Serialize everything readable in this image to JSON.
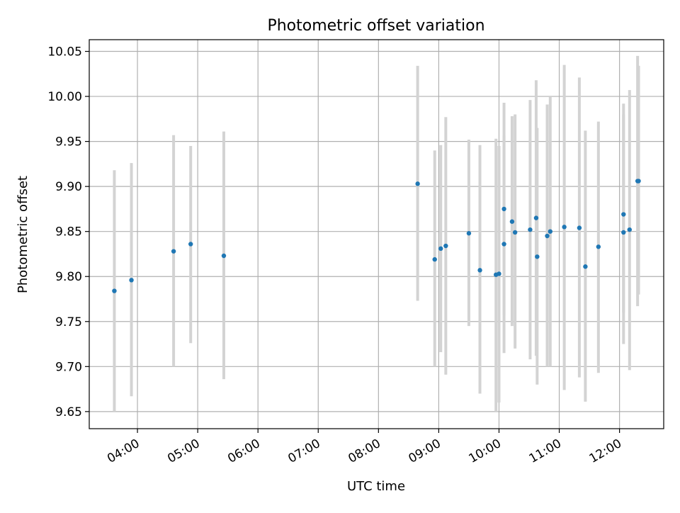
{
  "chart_data": {
    "type": "scatter",
    "title": "Photometric offset variation",
    "xlabel": "UTC time",
    "ylabel": "Photometric offset",
    "x_tick_labels": [
      "04:00",
      "05:00",
      "06:00",
      "07:00",
      "08:00",
      "09:00",
      "10:00",
      "11:00",
      "12:00"
    ],
    "y_tick_labels": [
      "9.65",
      "9.70",
      "9.75",
      "9.80",
      "9.85",
      "9.90",
      "9.95",
      "10.00",
      "10.05"
    ],
    "xlim": [
      "03:12",
      "12:44"
    ],
    "ylim": [
      9.631,
      10.063
    ],
    "grid": true,
    "legend": "none",
    "colors": {
      "marker": "#1f77b4",
      "errorbar": "#d3d3d3",
      "grid": "#b0b0b0"
    },
    "series": [
      {
        "points": [
          {
            "t": "03:37",
            "y": 9.784,
            "ylo": 9.65,
            "yhi": 9.918
          },
          {
            "t": "03:54",
            "y": 9.796,
            "ylo": 9.667,
            "yhi": 9.926
          },
          {
            "t": "04:36",
            "y": 9.828,
            "ylo": 9.7,
            "yhi": 9.957
          },
          {
            "t": "04:53",
            "y": 9.836,
            "ylo": 9.726,
            "yhi": 9.945
          },
          {
            "t": "05:26",
            "y": 9.823,
            "ylo": 9.686,
            "yhi": 9.961
          },
          {
            "t": "08:39",
            "y": 9.903,
            "ylo": 9.773,
            "yhi": 10.034
          },
          {
            "t": "08:56",
            "y": 9.819,
            "ylo": 9.7,
            "yhi": 9.94
          },
          {
            "t": "09:02",
            "y": 9.831,
            "ylo": 9.716,
            "yhi": 9.946
          },
          {
            "t": "09:07",
            "y": 9.834,
            "ylo": 9.691,
            "yhi": 9.977
          },
          {
            "t": "09:30",
            "y": 9.848,
            "ylo": 9.745,
            "yhi": 9.952
          },
          {
            "t": "09:41",
            "y": 9.807,
            "ylo": 9.67,
            "yhi": 9.946
          },
          {
            "t": "09:57",
            "y": 9.802,
            "ylo": 9.65,
            "yhi": 9.953
          },
          {
            "t": "10:00",
            "y": 9.803,
            "ylo": 9.66,
            "yhi": 9.945
          },
          {
            "t": "10:05",
            "y": 9.875,
            "ylo": 9.757,
            "yhi": 9.993
          },
          {
            "t": "10:05",
            "y": 9.836,
            "ylo": 9.715,
            "yhi": 9.957
          },
          {
            "t": "10:13",
            "y": 9.861,
            "ylo": 9.745,
            "yhi": 9.978
          },
          {
            "t": "10:16",
            "y": 9.849,
            "ylo": 9.72,
            "yhi": 9.98
          },
          {
            "t": "10:31",
            "y": 9.852,
            "ylo": 9.708,
            "yhi": 9.996
          },
          {
            "t": "10:37",
            "y": 9.865,
            "ylo": 9.712,
            "yhi": 10.018
          },
          {
            "t": "10:38",
            "y": 9.822,
            "ylo": 9.68,
            "yhi": 9.965
          },
          {
            "t": "10:48",
            "y": 9.845,
            "ylo": 9.7,
            "yhi": 9.991
          },
          {
            "t": "10:51",
            "y": 9.85,
            "ylo": 9.7,
            "yhi": 10.0
          },
          {
            "t": "11:05",
            "y": 9.855,
            "ylo": 9.674,
            "yhi": 10.035
          },
          {
            "t": "11:20",
            "y": 9.854,
            "ylo": 9.688,
            "yhi": 10.021
          },
          {
            "t": "11:26",
            "y": 9.811,
            "ylo": 9.661,
            "yhi": 9.962
          },
          {
            "t": "11:39",
            "y": 9.833,
            "ylo": 9.693,
            "yhi": 9.972
          },
          {
            "t": "12:04",
            "y": 9.849,
            "ylo": 9.725,
            "yhi": 9.992
          },
          {
            "t": "12:04",
            "y": 9.869,
            "ylo": 9.76,
            "yhi": 9.98
          },
          {
            "t": "12:10",
            "y": 9.852,
            "ylo": 9.696,
            "yhi": 10.007
          },
          {
            "t": "12:18",
            "y": 9.906,
            "ylo": 9.767,
            "yhi": 10.045
          },
          {
            "t": "12:19",
            "y": 9.906,
            "ylo": 9.78,
            "yhi": 10.034
          }
        ]
      }
    ]
  }
}
